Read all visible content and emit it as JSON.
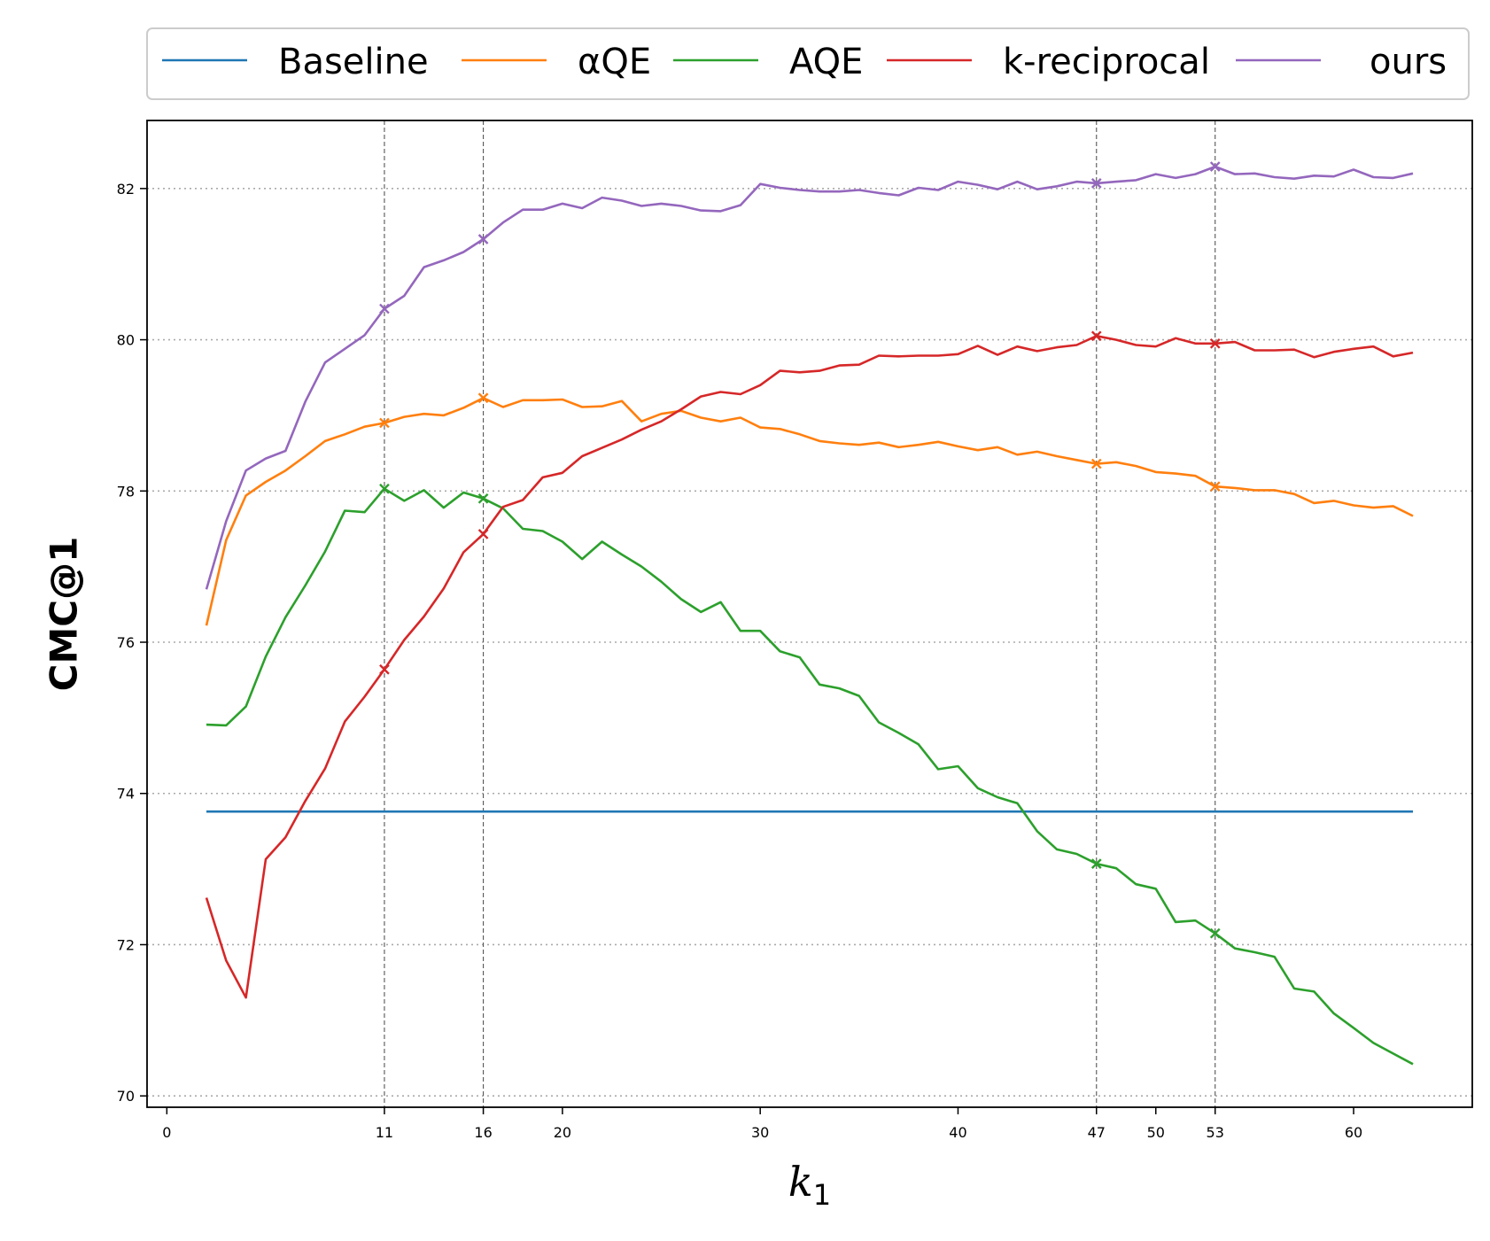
{
  "chart_data": {
    "type": "line",
    "xlabel": "k",
    "xlabel_subscript": "1",
    "ylabel": "CMC@1",
    "xlim": [
      -1,
      66
    ],
    "ylim": [
      69.85,
      82.9
    ],
    "x_ticks": [
      0,
      11,
      16,
      20,
      30,
      40,
      47,
      50,
      53,
      60
    ],
    "y_ticks": [
      70,
      72,
      74,
      76,
      78,
      80,
      82
    ],
    "highlight_x": [
      11,
      16,
      47,
      53
    ],
    "grid": "horizontal dotted at y ticks; vertical dashed at highlighted k values",
    "legend_position": "top, above plot, single row",
    "x": [
      2,
      3,
      4,
      5,
      6,
      7,
      8,
      9,
      10,
      11,
      12,
      13,
      14,
      15,
      16,
      17,
      18,
      19,
      20,
      21,
      22,
      23,
      24,
      25,
      26,
      27,
      28,
      29,
      30,
      31,
      32,
      33,
      34,
      35,
      36,
      37,
      38,
      39,
      40,
      41,
      42,
      43,
      44,
      45,
      46,
      47,
      48,
      49,
      50,
      51,
      52,
      53,
      54,
      55,
      56,
      57,
      58,
      59,
      60,
      61,
      62,
      63
    ],
    "series": [
      {
        "name": "Baseline",
        "color": "#1f77b4",
        "markers_at": [],
        "values": [
          73.76,
          73.76,
          73.76,
          73.76,
          73.76,
          73.76,
          73.76,
          73.76,
          73.76,
          73.76,
          73.76,
          73.76,
          73.76,
          73.76,
          73.76,
          73.76,
          73.76,
          73.76,
          73.76,
          73.76,
          73.76,
          73.76,
          73.76,
          73.76,
          73.76,
          73.76,
          73.76,
          73.76,
          73.76,
          73.76,
          73.76,
          73.76,
          73.76,
          73.76,
          73.76,
          73.76,
          73.76,
          73.76,
          73.76,
          73.76,
          73.76,
          73.76,
          73.76,
          73.76,
          73.76,
          73.76,
          73.76,
          73.76,
          73.76,
          73.76,
          73.76,
          73.76,
          73.76,
          73.76,
          73.76,
          73.76,
          73.76,
          73.76,
          73.76,
          73.76,
          73.76,
          73.76
        ]
      },
      {
        "name": "αQE",
        "color": "#ff7f0e",
        "markers_at": [
          11,
          16,
          47,
          53
        ],
        "values": [
          76.22,
          77.35,
          77.94,
          78.12,
          78.27,
          78.46,
          78.66,
          78.75,
          78.85,
          78.9,
          78.98,
          79.02,
          79.0,
          79.1,
          79.23,
          79.11,
          79.2,
          79.2,
          79.21,
          79.11,
          79.12,
          79.19,
          78.92,
          79.02,
          79.06,
          78.97,
          78.92,
          78.97,
          78.84,
          78.82,
          78.75,
          78.66,
          78.63,
          78.61,
          78.64,
          78.58,
          78.61,
          78.65,
          78.59,
          78.54,
          78.58,
          78.48,
          78.52,
          78.46,
          78.41,
          78.36,
          78.38,
          78.33,
          78.25,
          78.23,
          78.2,
          78.06,
          78.04,
          78.01,
          78.01,
          77.96,
          77.84,
          77.87,
          77.81,
          77.78,
          77.8,
          77.67
        ]
      },
      {
        "name": "AQE",
        "color": "#2ca02c",
        "markers_at": [
          11,
          16,
          47,
          53
        ],
        "values": [
          74.91,
          74.9,
          75.15,
          75.81,
          76.33,
          76.75,
          77.2,
          77.74,
          77.72,
          78.03,
          77.87,
          78.01,
          77.78,
          77.98,
          77.9,
          77.77,
          77.5,
          77.47,
          77.33,
          77.1,
          77.33,
          77.16,
          77.0,
          76.8,
          76.57,
          76.4,
          76.53,
          76.15,
          76.15,
          75.88,
          75.8,
          75.44,
          75.39,
          75.29,
          74.94,
          74.8,
          74.65,
          74.32,
          74.36,
          74.07,
          73.95,
          73.87,
          73.5,
          73.26,
          73.2,
          73.07,
          73.01,
          72.8,
          72.74,
          72.3,
          72.32,
          72.15,
          71.95,
          71.9,
          71.84,
          71.42,
          71.38,
          71.09,
          70.9,
          70.7,
          70.56,
          70.42
        ]
      },
      {
        "name": "k-reciprocal",
        "color": "#d62728",
        "markers_at": [
          11,
          16,
          47,
          53
        ],
        "values": [
          72.62,
          71.79,
          71.3,
          73.13,
          73.42,
          73.9,
          74.33,
          74.95,
          75.28,
          75.64,
          76.03,
          76.34,
          76.71,
          77.19,
          77.43,
          77.79,
          77.88,
          78.18,
          78.24,
          78.46,
          78.57,
          78.68,
          78.81,
          78.92,
          79.08,
          79.25,
          79.31,
          79.28,
          79.4,
          79.59,
          79.57,
          79.59,
          79.66,
          79.67,
          79.79,
          79.78,
          79.79,
          79.79,
          79.81,
          79.92,
          79.8,
          79.91,
          79.85,
          79.9,
          79.93,
          80.05,
          80.0,
          79.93,
          79.91,
          80.02,
          79.95,
          79.95,
          79.97,
          79.86,
          79.86,
          79.87,
          79.77,
          79.84,
          79.88,
          79.91,
          79.78,
          79.83
        ]
      },
      {
        "name": "ours",
        "color": "#9467bd",
        "markers_at": [
          11,
          16,
          47,
          53
        ],
        "values": [
          76.7,
          77.6,
          78.27,
          78.43,
          78.53,
          79.18,
          79.7,
          79.88,
          80.06,
          80.41,
          80.58,
          80.96,
          81.05,
          81.16,
          81.33,
          81.55,
          81.72,
          81.72,
          81.8,
          81.74,
          81.88,
          81.84,
          81.77,
          81.8,
          81.77,
          81.71,
          81.7,
          81.78,
          82.06,
          82.01,
          81.98,
          81.96,
          81.96,
          81.98,
          81.94,
          81.91,
          82.01,
          81.98,
          82.09,
          82.05,
          81.99,
          82.09,
          81.99,
          82.03,
          82.09,
          82.07,
          82.09,
          82.11,
          82.19,
          82.14,
          82.19,
          82.29,
          82.19,
          82.2,
          82.15,
          82.13,
          82.17,
          82.16,
          82.25,
          82.15,
          82.14,
          82.2
        ]
      }
    ]
  }
}
